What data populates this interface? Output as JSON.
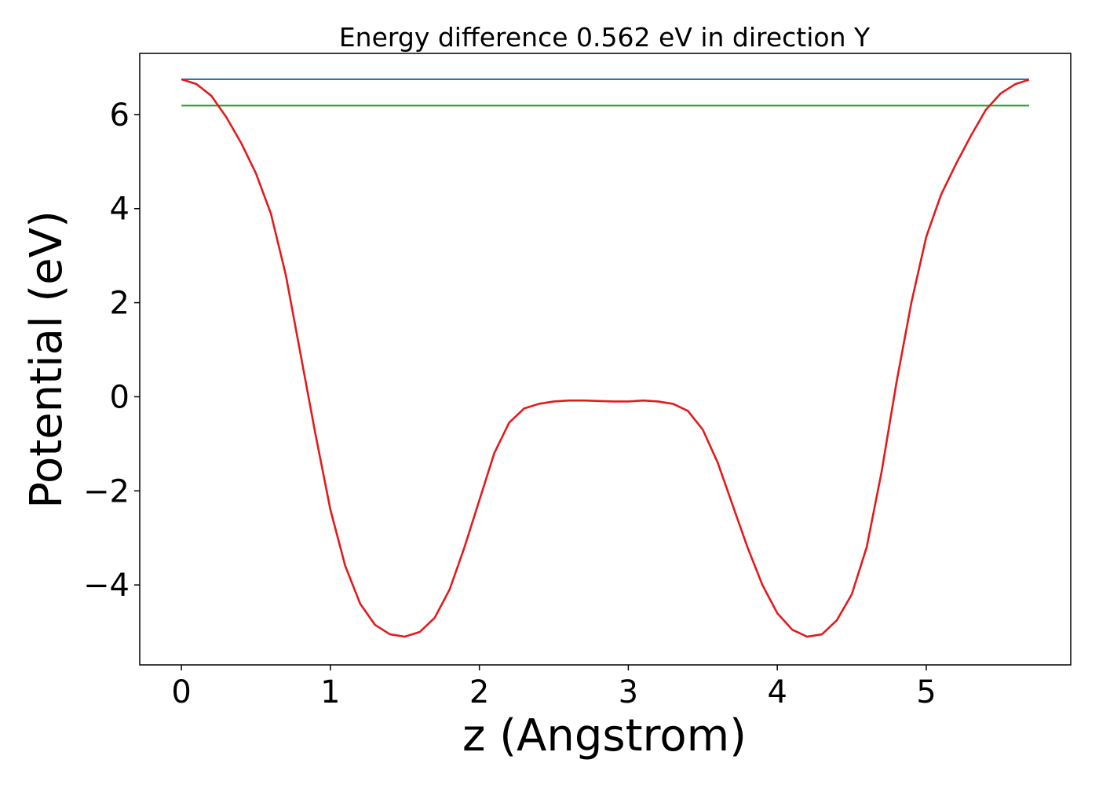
{
  "chart_data": {
    "type": "line",
    "title": "Energy difference 0.562 eV in direction Y",
    "xlabel": "z (Angstrom)",
    "ylabel": "Potential (eV)",
    "xlim": [
      -0.28,
      5.97
    ],
    "ylim": [
      -5.7,
      7.3
    ],
    "grid": false,
    "x_ticks": [
      0,
      1,
      2,
      3,
      4,
      5
    ],
    "y_ticks": [
      -4,
      -2,
      0,
      2,
      4,
      6
    ],
    "x_tick_labels": [
      "0",
      "1",
      "2",
      "3",
      "4",
      "5"
    ],
    "y_tick_labels": [
      "−4",
      "−2",
      "0",
      "2",
      "4",
      "6"
    ],
    "series": [
      {
        "color": "#1f77b4",
        "x": [
          0,
          5.69
        ],
        "values": [
          6.75,
          6.75
        ]
      },
      {
        "color": "#2ca02c",
        "x": [
          0,
          5.69
        ],
        "values": [
          6.19,
          6.19
        ]
      },
      {
        "color": "#e31a1c",
        "x": [
          0,
          0.1,
          0.2,
          0.3,
          0.4,
          0.5,
          0.6,
          0.7,
          0.8,
          0.9,
          1.0,
          1.1,
          1.2,
          1.3,
          1.4,
          1.5,
          1.6,
          1.7,
          1.8,
          1.9,
          2.0,
          2.1,
          2.2,
          2.3,
          2.4,
          2.5,
          2.6,
          2.7,
          2.8,
          2.9,
          3.0,
          3.1,
          3.2,
          3.3,
          3.4,
          3.5,
          3.6,
          3.7,
          3.8,
          3.9,
          4.0,
          4.1,
          4.2,
          4.3,
          4.4,
          4.5,
          4.6,
          4.7,
          4.8,
          4.9,
          5.0,
          5.1,
          5.2,
          5.3,
          5.4,
          5.5,
          5.6,
          5.69
        ],
        "values": [
          6.75,
          6.65,
          6.4,
          5.95,
          5.4,
          4.75,
          3.9,
          2.6,
          0.9,
          -0.8,
          -2.4,
          -3.6,
          -4.4,
          -4.85,
          -5.05,
          -5.1,
          -5.0,
          -4.7,
          -4.1,
          -3.2,
          -2.2,
          -1.2,
          -0.55,
          -0.25,
          -0.15,
          -0.1,
          -0.08,
          -0.08,
          -0.09,
          -0.1,
          -0.1,
          -0.08,
          -0.1,
          -0.15,
          -0.3,
          -0.7,
          -1.4,
          -2.3,
          -3.2,
          -4.0,
          -4.6,
          -4.95,
          -5.1,
          -5.05,
          -4.75,
          -4.2,
          -3.2,
          -1.6,
          0.3,
          2.0,
          3.4,
          4.3,
          4.95,
          5.55,
          6.1,
          6.45,
          6.65,
          6.74
        ]
      }
    ]
  }
}
